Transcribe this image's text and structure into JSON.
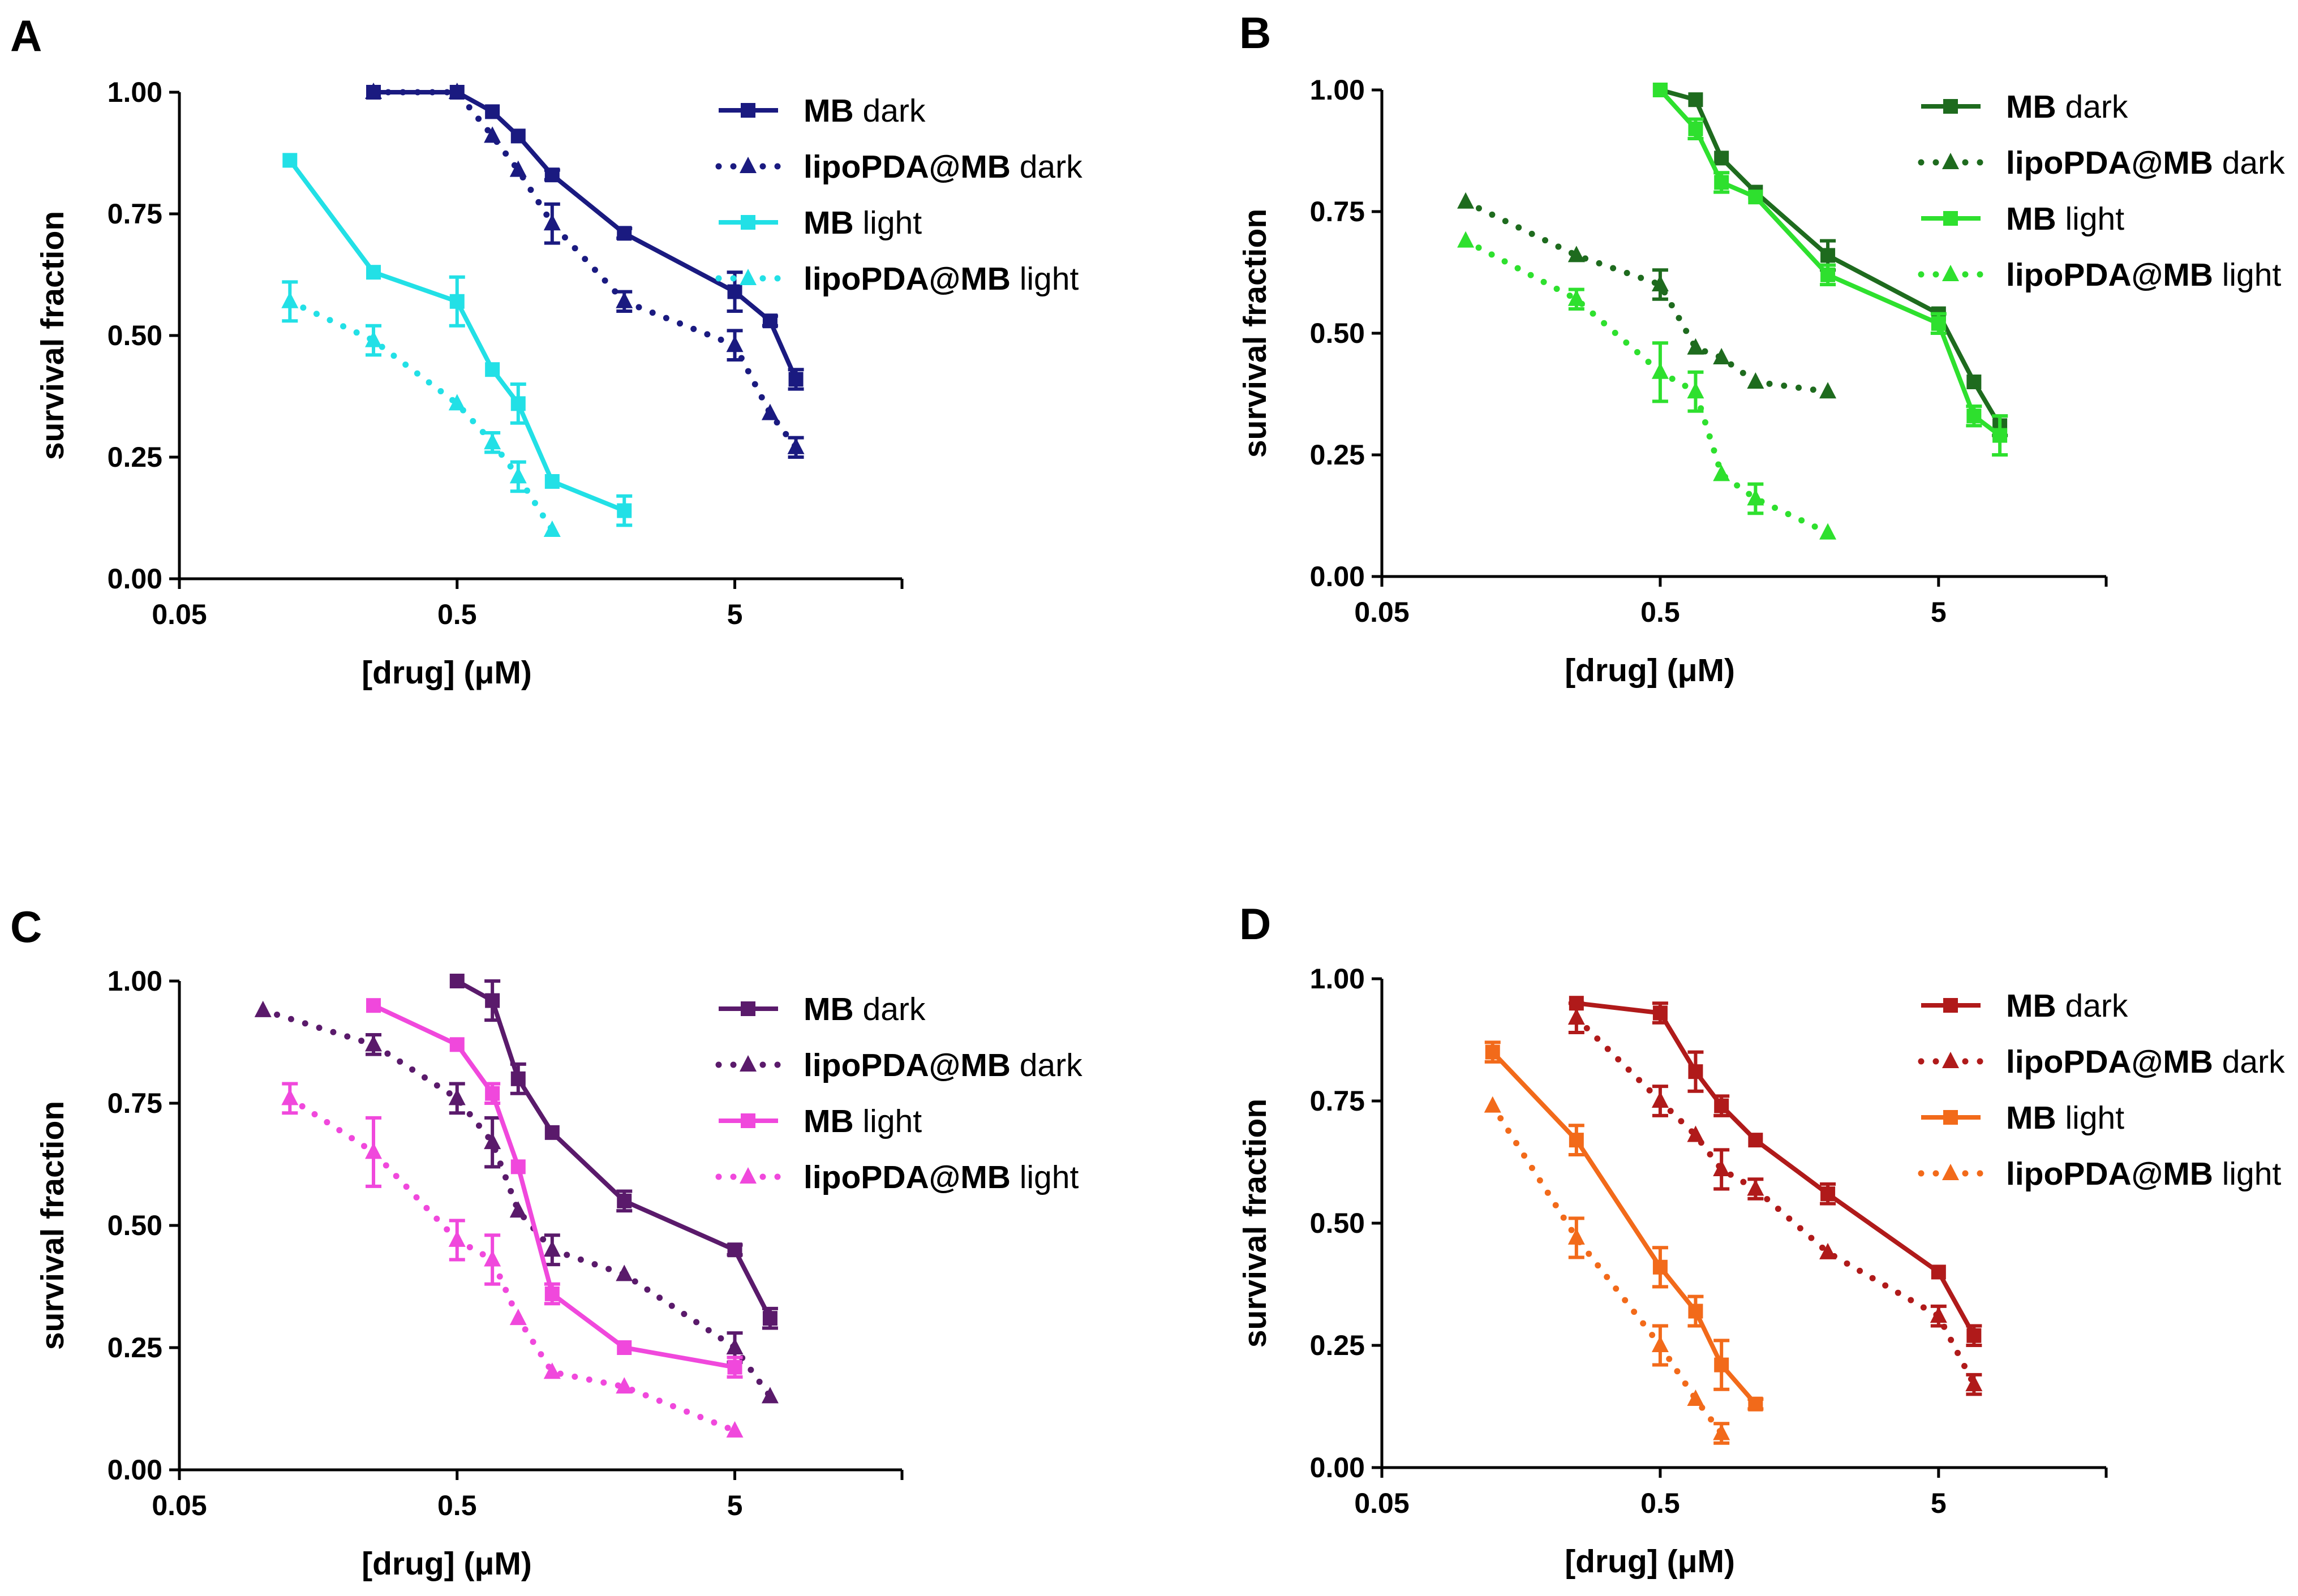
{
  "chart_data": [
    {
      "panel": "A",
      "type": "line",
      "xlabel": "[drug] (μM)",
      "ylabel": "survival fraction",
      "xscale": "log",
      "xlim": [
        0.05,
        20
      ],
      "ylim": [
        0,
        1.0
      ],
      "xticks": [
        "0.05",
        "0.5",
        "5"
      ],
      "yticks": [
        "0.00",
        "0.25",
        "0.50",
        "0.75",
        "1.00"
      ],
      "series": [
        {
          "name_bold": "MB",
          "name_rest": " dark",
          "color": "#1a1a80",
          "dash": "solid",
          "marker": "square",
          "x": [
            0.25,
            0.5,
            0.67,
            0.83,
            1.1,
            2.0,
            5.0,
            6.7,
            8.3
          ],
          "y": [
            1.0,
            1.0,
            0.96,
            0.91,
            0.83,
            0.71,
            0.59,
            0.53,
            0.41
          ],
          "err": [
            0,
            0,
            0,
            0,
            0.01,
            0.01,
            0.04,
            0.01,
            0.02
          ]
        },
        {
          "name_bold": "lipoPDA@MB",
          "name_rest": " dark",
          "color": "#1a1a80",
          "dash": "dot",
          "marker": "triangle",
          "x": [
            0.25,
            0.5,
            0.67,
            0.83,
            1.1,
            2.0,
            5.0,
            6.7,
            8.3
          ],
          "y": [
            1.0,
            1.0,
            0.91,
            0.84,
            0.73,
            0.57,
            0.48,
            0.34,
            0.27
          ],
          "err": [
            0,
            0,
            0,
            0,
            0.04,
            0.02,
            0.03,
            0,
            0.02
          ]
        },
        {
          "name_bold": "MB",
          "name_rest": " light",
          "color": "#22e0e6",
          "dash": "solid",
          "marker": "square",
          "x": [
            0.125,
            0.25,
            0.5,
            0.67,
            0.83,
            1.1,
            2.0
          ],
          "y": [
            0.86,
            0.63,
            0.57,
            0.43,
            0.36,
            0.2,
            0.14
          ],
          "err": [
            0,
            0,
            0.05,
            0,
            0.04,
            0,
            0.03
          ]
        },
        {
          "name_bold": "lipoPDA@MB",
          "name_rest": " light",
          "color": "#22e0e6",
          "dash": "dot",
          "marker": "triangle",
          "x": [
            0.125,
            0.25,
            0.5,
            0.67,
            0.83,
            1.1
          ],
          "y": [
            0.57,
            0.49,
            0.36,
            0.28,
            0.21,
            0.1
          ],
          "err": [
            0.04,
            0.03,
            0,
            0.02,
            0.03,
            0
          ]
        }
      ]
    },
    {
      "panel": "B",
      "type": "line",
      "xlabel": "[drug] (μM)",
      "ylabel": "survival fraction",
      "xscale": "log",
      "xlim": [
        0.05,
        20
      ],
      "ylim": [
        0,
        1.0
      ],
      "xticks": [
        "0.05",
        "0.5",
        "5"
      ],
      "yticks": [
        "0.00",
        "0.25",
        "0.50",
        "0.75",
        "1.00"
      ],
      "series": [
        {
          "name_bold": "MB",
          "name_rest": " dark",
          "color": "#1e6b1e",
          "dash": "solid",
          "marker": "square",
          "x": [
            0.5,
            0.67,
            0.83,
            1.1,
            2.0,
            5.0,
            6.7,
            8.3
          ],
          "y": [
            1.0,
            0.98,
            0.86,
            0.79,
            0.66,
            0.54,
            0.4,
            0.31
          ],
          "err": [
            0,
            0,
            0,
            0,
            0.03,
            0,
            0,
            0.02
          ]
        },
        {
          "name_bold": "lipoPDA@MB",
          "name_rest": " dark",
          "color": "#1e6b1e",
          "dash": "dot",
          "marker": "triangle",
          "x": [
            0.1,
            0.25,
            0.5,
            0.67,
            0.83,
            1.1,
            2.0
          ],
          "y": [
            0.77,
            0.66,
            0.6,
            0.47,
            0.45,
            0.4,
            0.38
          ],
          "err": [
            0,
            0,
            0.03,
            0,
            0,
            0,
            0
          ]
        },
        {
          "name_bold": "MB",
          "name_rest": " light",
          "color": "#2ee02e",
          "dash": "solid",
          "marker": "square",
          "x": [
            0.5,
            0.67,
            0.83,
            1.1,
            2.0,
            5.0,
            6.7,
            8.3
          ],
          "y": [
            1.0,
            0.92,
            0.81,
            0.78,
            0.62,
            0.52,
            0.33,
            0.29
          ],
          "err": [
            0,
            0.02,
            0.02,
            0,
            0.02,
            0.02,
            0.02,
            0.04
          ]
        },
        {
          "name_bold": "lipoPDA@MB",
          "name_rest": " light",
          "color": "#2ee02e",
          "dash": "dot",
          "marker": "triangle",
          "x": [
            0.1,
            0.25,
            0.5,
            0.67,
            0.83,
            1.1,
            2.0
          ],
          "y": [
            0.69,
            0.57,
            0.42,
            0.38,
            0.21,
            0.16,
            0.09
          ],
          "err": [
            0,
            0.02,
            0.06,
            0.04,
            0,
            0.03,
            0
          ]
        }
      ]
    },
    {
      "panel": "C",
      "type": "line",
      "xlabel": "[drug] (μM)",
      "ylabel": "survival fraction",
      "xscale": "log",
      "xlim": [
        0.05,
        20
      ],
      "ylim": [
        0,
        1.0
      ],
      "xticks": [
        "0.05",
        "0.5",
        "5"
      ],
      "yticks": [
        "0.00",
        "0.25",
        "0.50",
        "0.75",
        "1.00"
      ],
      "series": [
        {
          "name_bold": "MB",
          "name_rest": " dark",
          "color": "#5a1a6b",
          "dash": "solid",
          "marker": "square",
          "x": [
            0.5,
            0.67,
            0.83,
            1.1,
            2.0,
            5.0,
            6.7
          ],
          "y": [
            1.0,
            0.96,
            0.8,
            0.69,
            0.55,
            0.45,
            0.31
          ],
          "err": [
            0,
            0.04,
            0.03,
            0,
            0.02,
            0.01,
            0.02
          ]
        },
        {
          "name_bold": "lipoPDA@MB",
          "name_rest": " dark",
          "color": "#5a1a6b",
          "dash": "dot",
          "marker": "triangle",
          "x": [
            0.1,
            0.25,
            0.5,
            0.67,
            0.83,
            1.1,
            2.0,
            5.0,
            6.7
          ],
          "y": [
            0.94,
            0.87,
            0.76,
            0.67,
            0.53,
            0.45,
            0.4,
            0.25,
            0.15
          ],
          "err": [
            0,
            0.02,
            0.03,
            0.05,
            0,
            0.03,
            0,
            0.03,
            0
          ]
        },
        {
          "name_bold": "MB",
          "name_rest": " light",
          "color": "#f048dc",
          "dash": "solid",
          "marker": "square",
          "x": [
            0.25,
            0.5,
            0.67,
            0.83,
            1.1,
            2.0,
            5.0
          ],
          "y": [
            0.95,
            0.87,
            0.77,
            0.62,
            0.36,
            0.25,
            0.21
          ],
          "err": [
            0,
            0,
            0.02,
            0,
            0.02,
            0,
            0.02
          ]
        },
        {
          "name_bold": "lipoPDA@MB",
          "name_rest": " light",
          "color": "#f048dc",
          "dash": "dot",
          "marker": "triangle",
          "x": [
            0.125,
            0.25,
            0.5,
            0.67,
            0.83,
            1.1,
            2.0,
            5.0
          ],
          "y": [
            0.76,
            0.65,
            0.47,
            0.43,
            0.31,
            0.2,
            0.17,
            0.08
          ],
          "err": [
            0.03,
            0.07,
            0.04,
            0.05,
            0,
            0,
            0,
            0
          ]
        }
      ]
    },
    {
      "panel": "D",
      "type": "line",
      "xlabel": "[drug] (μM)",
      "ylabel": "survival fraction",
      "xscale": "log",
      "xlim": [
        0.05,
        20
      ],
      "ylim": [
        0,
        1.0
      ],
      "xticks": [
        "0.05",
        "0.5",
        "5"
      ],
      "yticks": [
        "0.00",
        "0.25",
        "0.50",
        "0.75",
        "1.00"
      ],
      "series": [
        {
          "name_bold": "MB",
          "name_rest": " dark",
          "color": "#b01a1a",
          "dash": "solid",
          "marker": "square",
          "x": [
            0.25,
            0.5,
            0.67,
            0.83,
            1.1,
            2.0,
            5.0,
            6.7
          ],
          "y": [
            0.95,
            0.93,
            0.81,
            0.74,
            0.67,
            0.56,
            0.4,
            0.27
          ],
          "err": [
            0,
            0.02,
            0.04,
            0.02,
            0,
            0.02,
            0,
            0.02
          ]
        },
        {
          "name_bold": "lipoPDA@MB",
          "name_rest": " dark",
          "color": "#b01a1a",
          "dash": "dot",
          "marker": "triangle",
          "x": [
            0.25,
            0.5,
            0.67,
            0.83,
            1.1,
            2.0,
            5.0,
            6.7
          ],
          "y": [
            0.92,
            0.75,
            0.68,
            0.61,
            0.57,
            0.44,
            0.31,
            0.17
          ],
          "err": [
            0.03,
            0.03,
            0,
            0.04,
            0.02,
            0,
            0.02,
            0.02
          ]
        },
        {
          "name_bold": "MB",
          "name_rest": " light",
          "color": "#f26a1a",
          "dash": "solid",
          "marker": "square",
          "x": [
            0.125,
            0.25,
            0.5,
            0.67,
            0.83,
            1.1
          ],
          "y": [
            0.85,
            0.67,
            0.41,
            0.32,
            0.21,
            0.13
          ],
          "err": [
            0.02,
            0.03,
            0.04,
            0.03,
            0.05,
            0.01
          ]
        },
        {
          "name_bold": "lipoPDA@MB",
          "name_rest": " light",
          "color": "#f26a1a",
          "dash": "dot",
          "marker": "triangle",
          "x": [
            0.125,
            0.25,
            0.5,
            0.67,
            0.83
          ],
          "y": [
            0.74,
            0.47,
            0.25,
            0.14,
            0.07
          ],
          "err": [
            0,
            0.04,
            0.04,
            0,
            0.02
          ]
        }
      ]
    }
  ]
}
